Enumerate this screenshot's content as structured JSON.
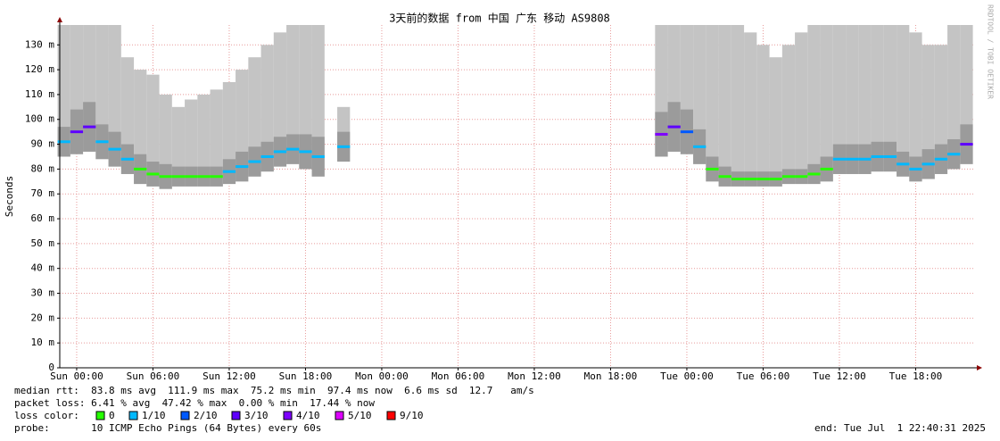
{
  "chart_data": {
    "type": "smoke",
    "title": "3天前的数据 from 中国 广东 移动 AS9808",
    "y_label": "Seconds",
    "watermark": "RRDTOOL / TOBI OETIKER",
    "xlim": [
      -1.33,
      70.67
    ],
    "ylim": [
      0,
      138
    ],
    "xticks": [
      {
        "value": 0,
        "label": "Sun 00:00"
      },
      {
        "value": 6,
        "label": "Sun 06:00"
      },
      {
        "value": 12,
        "label": "Sun 12:00"
      },
      {
        "value": 18,
        "label": "Sun 18:00"
      },
      {
        "value": 24,
        "label": "Mon 00:00"
      },
      {
        "value": 30,
        "label": "Mon 06:00"
      },
      {
        "value": 36,
        "label": "Mon 12:00"
      },
      {
        "value": 42,
        "label": "Mon 18:00"
      },
      {
        "value": 48,
        "label": "Tue 00:00"
      },
      {
        "value": 54,
        "label": "Tue 06:00"
      },
      {
        "value": 60,
        "label": "Tue 12:00"
      },
      {
        "value": 66,
        "label": "Tue 18:00"
      }
    ],
    "yticks": [
      0,
      {
        "value": 10,
        "label": "10 m"
      },
      {
        "value": 20,
        "label": "20 m"
      },
      {
        "value": 30,
        "label": "30 m"
      },
      {
        "value": 40,
        "label": "40 m"
      },
      {
        "value": 50,
        "label": "50 m"
      },
      {
        "value": 60,
        "label": "60 m"
      },
      {
        "value": 70,
        "label": "70 m"
      },
      {
        "value": 80,
        "label": "80 m"
      },
      {
        "value": 90,
        "label": "90 m"
      },
      {
        "value": 100,
        "label": "100 m"
      },
      {
        "value": 110,
        "label": "110 m"
      },
      {
        "value": 120,
        "label": "120 m"
      },
      {
        "value": 130,
        "label": "130 m"
      }
    ],
    "grid": true,
    "smoke_color": "#c4c4c4",
    "x": [
      -1,
      0,
      1,
      2,
      3,
      4,
      5,
      6,
      7,
      8,
      9,
      10,
      11,
      12,
      13,
      14,
      15,
      16,
      17,
      18,
      19,
      20,
      21,
      22,
      23,
      24,
      25,
      26,
      27,
      28,
      29,
      30,
      31,
      32,
      33,
      34,
      35,
      36,
      37,
      38,
      39,
      40,
      41,
      42,
      43,
      44,
      45,
      46,
      47,
      48,
      49,
      50,
      51,
      52,
      53,
      54,
      55,
      56,
      57,
      58,
      59,
      60,
      61,
      62,
      63,
      64,
      65,
      66,
      67,
      68,
      69,
      70
    ],
    "median": [
      91,
      95,
      97,
      91,
      88,
      84,
      80,
      78,
      77,
      77,
      77,
      77,
      77,
      79,
      81,
      83,
      85,
      87,
      88,
      87,
      85,
      null,
      89,
      null,
      null,
      null,
      null,
      null,
      null,
      null,
      null,
      null,
      null,
      null,
      null,
      null,
      null,
      null,
      null,
      null,
      null,
      null,
      null,
      null,
      null,
      null,
      null,
      94,
      97,
      95,
      89,
      80,
      77,
      76,
      76,
      76,
      76,
      77,
      77,
      78,
      80,
      84,
      84,
      84,
      85,
      85,
      82,
      80,
      82,
      84,
      86,
      90
    ],
    "smoke_low": [
      85,
      86,
      87,
      84,
      81,
      78,
      74,
      73,
      72,
      73,
      73,
      73,
      73,
      74,
      75,
      77,
      79,
      81,
      82,
      80,
      77,
      null,
      83,
      null,
      null,
      null,
      null,
      null,
      null,
      null,
      null,
      null,
      null,
      null,
      null,
      null,
      null,
      null,
      null,
      null,
      null,
      null,
      null,
      null,
      null,
      null,
      null,
      85,
      87,
      86,
      82,
      75,
      73,
      73,
      73,
      73,
      73,
      74,
      74,
      74,
      75,
      78,
      78,
      78,
      79,
      79,
      77,
      75,
      76,
      78,
      80,
      82
    ],
    "smoke_high": [
      138,
      138,
      138,
      138,
      138,
      125,
      120,
      118,
      110,
      105,
      108,
      110,
      112,
      115,
      120,
      125,
      130,
      135,
      138,
      138,
      138,
      null,
      105,
      null,
      null,
      null,
      null,
      null,
      null,
      null,
      null,
      null,
      null,
      null,
      null,
      null,
      null,
      null,
      null,
      null,
      null,
      null,
      null,
      null,
      null,
      null,
      null,
      138,
      138,
      138,
      138,
      138,
      138,
      138,
      135,
      130,
      125,
      130,
      135,
      138,
      138,
      138,
      138,
      138,
      138,
      138,
      138,
      135,
      130,
      130,
      138,
      138
    ],
    "loss": [
      1,
      3,
      3,
      1,
      1,
      1,
      0,
      0,
      0,
      0,
      0,
      0,
      0,
      1,
      1,
      1,
      1,
      1,
      1,
      1,
      1,
      null,
      1,
      null,
      null,
      null,
      null,
      null,
      null,
      null,
      null,
      null,
      null,
      null,
      null,
      null,
      null,
      null,
      null,
      null,
      null,
      null,
      null,
      null,
      null,
      null,
      null,
      4,
      3,
      2,
      1,
      0,
      0,
      0,
      0,
      0,
      0,
      0,
      0,
      0,
      0,
      1,
      1,
      1,
      1,
      1,
      1,
      1,
      1,
      1,
      1,
      3
    ],
    "loss_legend": {
      "title": "loss color:",
      "items": [
        {
          "label": "0",
          "loss": 0,
          "color": "#26ff00"
        },
        {
          "label": "1/10",
          "loss": 1,
          "color": "#00b8ff"
        },
        {
          "label": "2/10",
          "loss": 2,
          "color": "#0059ff"
        },
        {
          "label": "3/10",
          "loss": 3,
          "color": "#5e00ff"
        },
        {
          "label": "4/10",
          "loss": 4,
          "color": "#7e00ff"
        },
        {
          "label": "5/10",
          "loss": 5,
          "color": "#dd00ff"
        },
        {
          "label": "9/10",
          "loss": 9,
          "color": "#ff0000"
        }
      ]
    },
    "footer": {
      "median_rtt": "median rtt:  83.8 ms avg  111.9 ms max  75.2 ms min  97.4 ms now  6.6 ms sd  12.7   am/s",
      "packet_loss": "packet loss: 6.41 % avg  47.42 % max  0.00 % min  17.44 % now",
      "probe": "probe:       10 ICMP Echo Pings (64 Bytes) every 60s",
      "end": "end: Tue Jul  1 22:40:31 2025"
    }
  }
}
